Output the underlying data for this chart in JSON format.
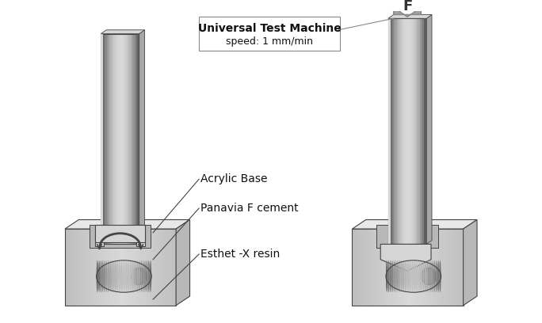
{
  "title_text": "Universal Test Machine",
  "subtitle_text": "speed: 1 mm/min",
  "label_acrylic": "Acrylic Base",
  "label_panavia": "Panavia F cement",
  "label_esthet": "Esthet -X resin",
  "label_force": "F",
  "face_color": "#d0d0d0",
  "side_color": "#b0b0b0",
  "top_color": "#e0e0e0",
  "recess_color": "#c0c0c0",
  "bracket_color": "#d5d5d5",
  "rod_mid": "#909090",
  "rod_edge_dark": "#606060",
  "rod_edge_light": "#c0c0c0",
  "disk_front": "#888888",
  "disk_back": "#666666",
  "arrow_fill": "#999999",
  "line_color": "#444444",
  "text_color": "#111111"
}
